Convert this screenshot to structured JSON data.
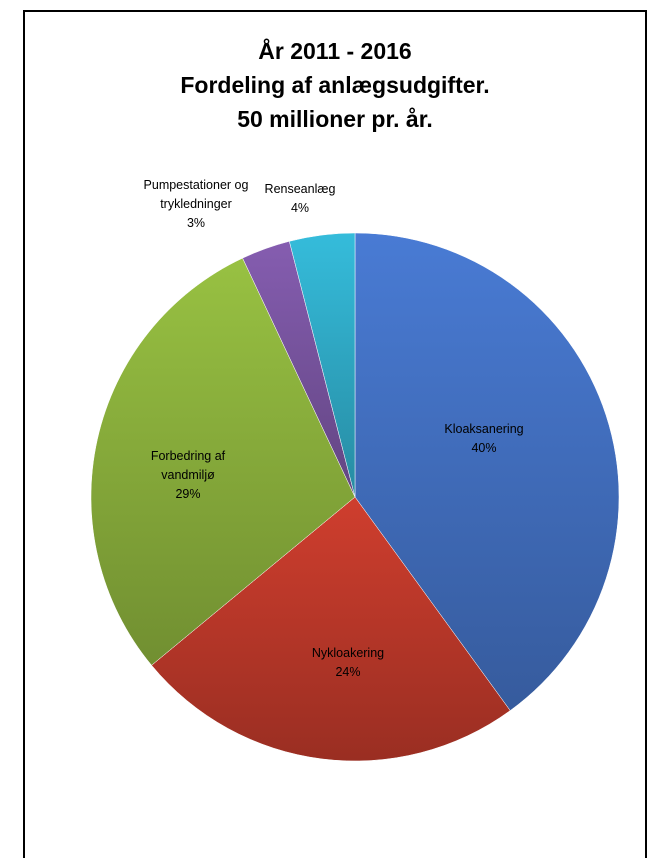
{
  "chart_data": {
    "type": "pie",
    "title_lines": [
      "År 2011 - 2016",
      "Fordeling af anlægsudgifter.",
      "50 millioner pr. år."
    ],
    "slices": [
      {
        "label": [
          "Kloaksanering"
        ],
        "pct": "40%",
        "value": 40,
        "color": "#4472c4"
      },
      {
        "label": [
          "Nykloakering"
        ],
        "pct": "24%",
        "value": 24,
        "color": "#c0392b"
      },
      {
        "label": [
          "Forbedring af",
          "vandmiljø"
        ],
        "pct": "29%",
        "value": 29,
        "color": "#8db33d"
      },
      {
        "label": [
          "Pumpestationer og",
          "trykledninger"
        ],
        "pct": "3%",
        "value": 3,
        "color": "#7b56a3"
      },
      {
        "label": [
          "Renseanlæg"
        ],
        "pct": "4%",
        "value": 4,
        "color": "#31aecb"
      }
    ]
  }
}
